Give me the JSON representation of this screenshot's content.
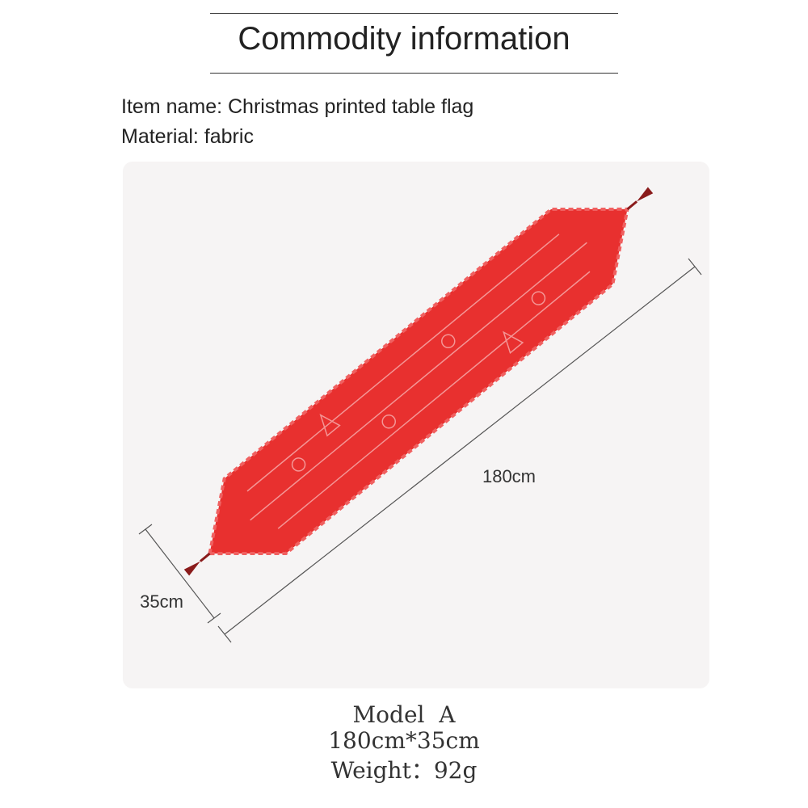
{
  "header": {
    "title": "Commodity information"
  },
  "info": {
    "item_name": "Item name: Christmas printed table flag",
    "material": "Material: fabric"
  },
  "dimensions": {
    "length": "180cm",
    "width": "35cm"
  },
  "model": {
    "name": "Model  A",
    "size": "180cm*35cm",
    "weight": "Weight：92g"
  }
}
